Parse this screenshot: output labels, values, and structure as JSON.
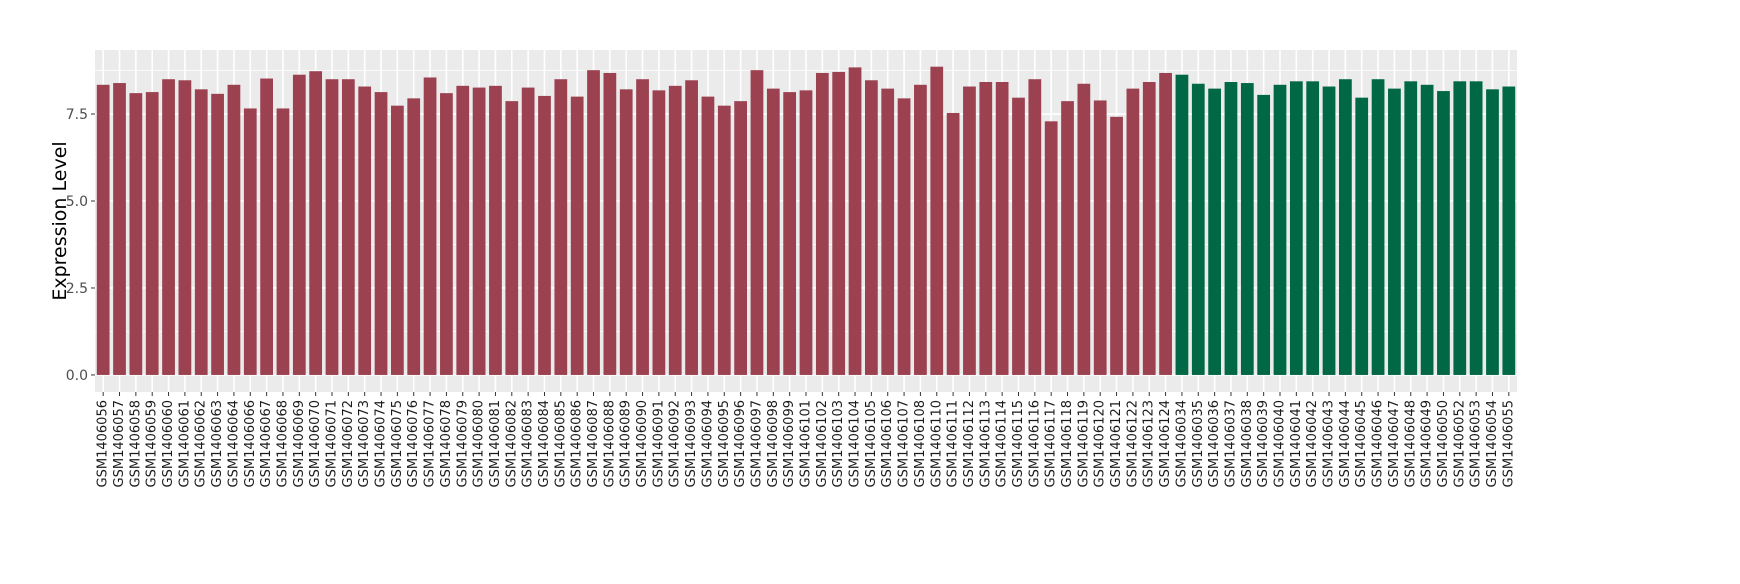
{
  "chart_data": {
    "type": "bar",
    "title": "",
    "xlabel": "",
    "ylabel": "Expression Level",
    "ylim": [
      -0.49,
      9.34
    ],
    "yticks": [
      0.0,
      2.5,
      5.0,
      7.5
    ],
    "ytick_labels": [
      "0.0",
      "2.5",
      "5.0",
      "7.5"
    ],
    "grid": true,
    "legend": "none",
    "colors": {
      "group1": "#9B4150",
      "group2": "#006845",
      "panel": "#EBEBEB",
      "grid": "#FFFFFF"
    },
    "categories": [
      "GSM1406056",
      "GSM1406057",
      "GSM1406058",
      "GSM1406059",
      "GSM1406060",
      "GSM1406061",
      "GSM1406062",
      "GSM1406063",
      "GSM1406064",
      "GSM1406066",
      "GSM1406067",
      "GSM1406068",
      "GSM1406069",
      "GSM1406070",
      "GSM1406071",
      "GSM1406072",
      "GSM1406073",
      "GSM1406074",
      "GSM1406075",
      "GSM1406076",
      "GSM1406077",
      "GSM1406078",
      "GSM1406079",
      "GSM1406080",
      "GSM1406081",
      "GSM1406082",
      "GSM1406083",
      "GSM1406084",
      "GSM1406085",
      "GSM1406086",
      "GSM1406087",
      "GSM1406088",
      "GSM1406089",
      "GSM1406090",
      "GSM1406091",
      "GSM1406092",
      "GSM1406093",
      "GSM1406094",
      "GSM1406095",
      "GSM1406096",
      "GSM1406097",
      "GSM1406098",
      "GSM1406099",
      "GSM1406101",
      "GSM1406102",
      "GSM1406103",
      "GSM1406104",
      "GSM1406105",
      "GSM1406106",
      "GSM1406107",
      "GSM1406108",
      "GSM1406110",
      "GSM1406111",
      "GSM1406112",
      "GSM1406113",
      "GSM1406114",
      "GSM1406115",
      "GSM1406116",
      "GSM1406117",
      "GSM1406118",
      "GSM1406119",
      "GSM1406120",
      "GSM1406121",
      "GSM1406122",
      "GSM1406123",
      "GSM1406124",
      "GSM1406034",
      "GSM1406035",
      "GSM1406036",
      "GSM1406037",
      "GSM1406038",
      "GSM1406039",
      "GSM1406040",
      "GSM1406041",
      "GSM1406042",
      "GSM1406043",
      "GSM1406044",
      "GSM1406045",
      "GSM1406046",
      "GSM1406047",
      "GSM1406048",
      "GSM1406049",
      "GSM1406050",
      "GSM1406052",
      "GSM1406053",
      "GSM1406054",
      "GSM1406055"
    ],
    "values": [
      8.34,
      8.39,
      8.1,
      8.13,
      8.5,
      8.47,
      8.21,
      8.08,
      8.34,
      7.66,
      8.52,
      7.66,
      8.63,
      8.73,
      8.5,
      8.5,
      8.29,
      8.13,
      7.74,
      7.95,
      8.55,
      8.1,
      8.31,
      8.26,
      8.31,
      7.87,
      8.26,
      8.02,
      8.5,
      8.0,
      8.76,
      8.68,
      8.21,
      8.5,
      8.18,
      8.31,
      8.47,
      8.0,
      7.74,
      7.87,
      8.76,
      8.23,
      8.13,
      8.18,
      8.68,
      8.71,
      8.84,
      8.47,
      8.23,
      7.95,
      8.34,
      8.86,
      7.53,
      8.29,
      8.42,
      8.42,
      7.97,
      8.5,
      7.29,
      7.87,
      8.37,
      7.89,
      7.42,
      8.23,
      8.42,
      8.68,
      8.63,
      8.37,
      8.23,
      8.42,
      8.39,
      8.05,
      8.34,
      8.44,
      8.44,
      8.29,
      8.5,
      7.97,
      8.5,
      8.23,
      8.44,
      8.34,
      8.16,
      8.44,
      8.44,
      8.21,
      8.29
    ],
    "groups": [
      "group1",
      "group1",
      "group1",
      "group1",
      "group1",
      "group1",
      "group1",
      "group1",
      "group1",
      "group1",
      "group1",
      "group1",
      "group1",
      "group1",
      "group1",
      "group1",
      "group1",
      "group1",
      "group1",
      "group1",
      "group1",
      "group1",
      "group1",
      "group1",
      "group1",
      "group1",
      "group1",
      "group1",
      "group1",
      "group1",
      "group1",
      "group1",
      "group1",
      "group1",
      "group1",
      "group1",
      "group1",
      "group1",
      "group1",
      "group1",
      "group1",
      "group1",
      "group1",
      "group1",
      "group1",
      "group1",
      "group1",
      "group1",
      "group1",
      "group1",
      "group1",
      "group1",
      "group1",
      "group1",
      "group1",
      "group1",
      "group1",
      "group1",
      "group1",
      "group1",
      "group1",
      "group1",
      "group1",
      "group1",
      "group1",
      "group1",
      "group2",
      "group2",
      "group2",
      "group2",
      "group2",
      "group2",
      "group2",
      "group2",
      "group2",
      "group2",
      "group2",
      "group2",
      "group2",
      "group2",
      "group2",
      "group2",
      "group2",
      "group2",
      "group2",
      "group2",
      "group2"
    ]
  }
}
